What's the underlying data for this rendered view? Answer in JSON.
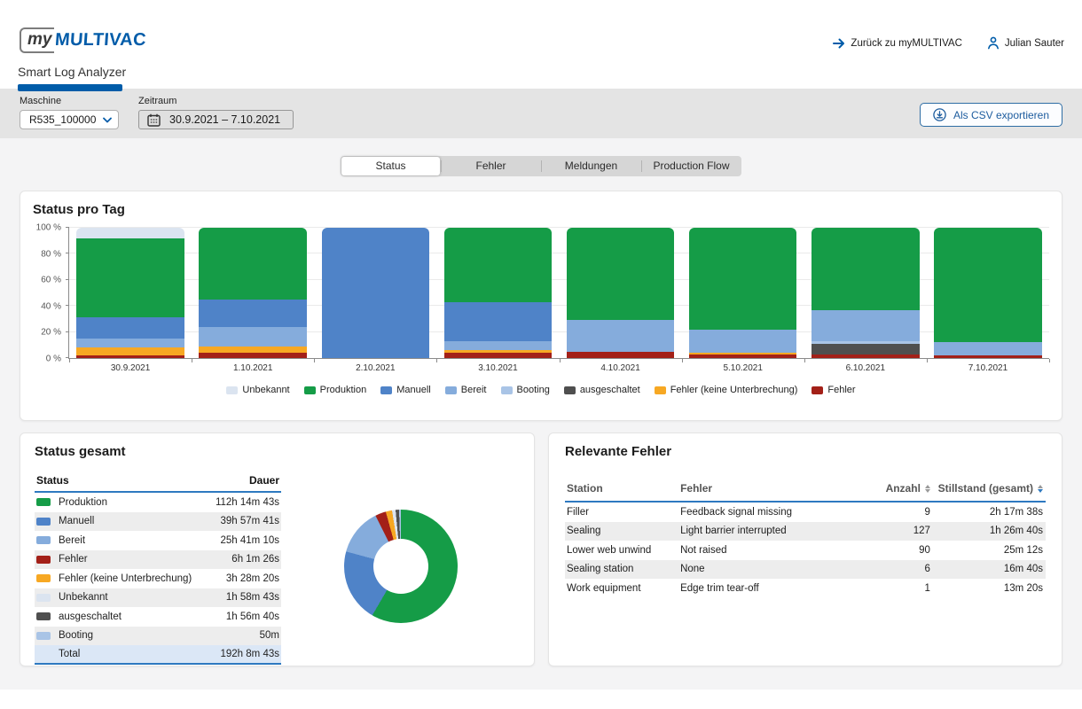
{
  "header": {
    "logo_my": "my",
    "logo_brand": "MULTIVAC",
    "app_tab": "Smart Log Analyzer",
    "back_link": "Zurück zu myMULTIVAC",
    "user_name": "Julian Sauter"
  },
  "filters": {
    "machine_label": "Maschine",
    "machine_value": "R535_100000",
    "period_label": "Zeitraum",
    "period_value": "30.9.2021 – 7.10.2021",
    "export_label": "Als CSV exportieren"
  },
  "tabs": {
    "active": "Status",
    "items": [
      {
        "key": "status",
        "label": "Status"
      },
      {
        "key": "fehler",
        "label": "Fehler"
      },
      {
        "key": "meldungen",
        "label": "Meldungen"
      },
      {
        "key": "production-flow",
        "label": "Production Flow"
      }
    ]
  },
  "colors": {
    "brand": "#005CA9",
    "accent": "#2E79C0",
    "unbekannt": "#dbe4f0",
    "produktion": "#159c47",
    "manuell": "#4f83c8",
    "bereit": "#85acdc",
    "booting": "#a9c4e6",
    "ausgeschaltet": "#4f4f4f",
    "fehler_ku": "#f7a823",
    "fehler": "#a32018"
  },
  "chart_data": [
    {
      "type": "bar",
      "stacked": true,
      "title": "Status pro Tag",
      "categories": [
        "30.9.2021",
        "1.10.2021",
        "2.10.2021",
        "3.10.2021",
        "4.10.2021",
        "5.10.2021",
        "6.10.2021",
        "7.10.2021"
      ],
      "ylim": [
        0,
        100
      ],
      "yticks": [
        0,
        20,
        40,
        60,
        80,
        100
      ],
      "ytick_labels": [
        "0 %",
        "20 %",
        "40 %",
        "60 %",
        "80 %",
        "100 %"
      ],
      "unit": "percent of day",
      "grid": true,
      "legend_position": "bottom",
      "series": [
        {
          "name": "Fehler",
          "color": "#a32018",
          "values": [
            2,
            4,
            0,
            4,
            5,
            3,
            3,
            2
          ]
        },
        {
          "name": "Fehler (keine Unterbrechung)",
          "color": "#f7a823",
          "values": [
            6,
            5,
            0,
            2,
            0,
            1,
            0,
            0
          ]
        },
        {
          "name": "ausgeschaltet",
          "color": "#4f4f4f",
          "values": [
            0,
            0,
            0,
            0,
            0,
            0,
            8,
            0
          ]
        },
        {
          "name": "Booting",
          "color": "#a9c4e6",
          "values": [
            0,
            0,
            0,
            0,
            0,
            0,
            2,
            0
          ]
        },
        {
          "name": "Bereit",
          "color": "#85acdc",
          "values": [
            7,
            15,
            0,
            7,
            24,
            18,
            24,
            10
          ]
        },
        {
          "name": "Manuell",
          "color": "#4f83c8",
          "values": [
            16,
            21,
            100,
            30,
            0,
            0,
            0,
            0
          ]
        },
        {
          "name": "Produktion",
          "color": "#159c47",
          "values": [
            61,
            55,
            0,
            57,
            71,
            78,
            63,
            88
          ]
        },
        {
          "name": "Unbekannt",
          "color": "#dbe4f0",
          "values": [
            8,
            0,
            0,
            0,
            0,
            0,
            0,
            0
          ]
        }
      ],
      "legend": [
        {
          "label": "Unbekannt",
          "color": "#dbe4f0"
        },
        {
          "label": "Produktion",
          "color": "#159c47"
        },
        {
          "label": "Manuell",
          "color": "#4f83c8"
        },
        {
          "label": "Bereit",
          "color": "#85acdc"
        },
        {
          "label": "Booting",
          "color": "#a9c4e6"
        },
        {
          "label": "ausgeschaltet",
          "color": "#4f4f4f"
        },
        {
          "label": "Fehler (keine Unterbrechung)",
          "color": "#f7a823"
        },
        {
          "label": "Fehler",
          "color": "#a32018"
        }
      ]
    },
    {
      "type": "pie",
      "donut": true,
      "title": "Status gesamt",
      "segments": [
        {
          "label": "Produktion",
          "pct": 58.4,
          "color": "#159c47"
        },
        {
          "label": "Manuell",
          "pct": 20.8,
          "color": "#4f83c8"
        },
        {
          "label": "Bereit",
          "pct": 13.4,
          "color": "#85acdc"
        },
        {
          "label": "Fehler",
          "pct": 3.1,
          "color": "#a32018"
        },
        {
          "label": "Fehler (keine Unterbrechung)",
          "pct": 1.8,
          "color": "#f7a823"
        },
        {
          "label": "Unbekannt",
          "pct": 1.0,
          "color": "#dbe4f0"
        },
        {
          "label": "ausgeschaltet",
          "pct": 1.0,
          "color": "#4f4f4f"
        },
        {
          "label": "Booting",
          "pct": 0.5,
          "color": "#a9c4e6"
        }
      ]
    }
  ],
  "status_table": {
    "title": "Status gesamt",
    "headers": {
      "status": "Status",
      "dauer": "Dauer"
    },
    "rows": [
      {
        "status": "Produktion",
        "color": "#159c47",
        "dauer": "112h 14m 43s"
      },
      {
        "status": "Manuell",
        "color": "#4f83c8",
        "dauer": "39h 57m 41s"
      },
      {
        "status": "Bereit",
        "color": "#85acdc",
        "dauer": "25h 41m 10s"
      },
      {
        "status": "Fehler",
        "color": "#a32018",
        "dauer": "6h 1m 26s"
      },
      {
        "status": "Fehler (keine Unterbrechung)",
        "color": "#f7a823",
        "dauer": "3h 28m 20s"
      },
      {
        "status": "Unbekannt",
        "color": "#dbe4f0",
        "dauer": "1h 58m 43s"
      },
      {
        "status": "ausgeschaltet",
        "color": "#4f4f4f",
        "dauer": "1h 56m 40s"
      },
      {
        "status": "Booting",
        "color": "#a9c4e6",
        "dauer": "50m"
      }
    ],
    "total": {
      "label": "Total",
      "dauer": "192h 8m 43s"
    }
  },
  "error_table": {
    "title": "Relevante Fehler",
    "headers": [
      {
        "label": "Station",
        "sort": "none"
      },
      {
        "label": "Fehler",
        "sort": "none"
      },
      {
        "label": "Anzahl",
        "sort": "both"
      },
      {
        "label": "Stillstand (gesamt)",
        "sort": "desc"
      }
    ],
    "rows": [
      {
        "station": "Filler",
        "fehler": "Feedback signal missing",
        "anzahl": "9",
        "stillstand": "2h 17m 38s"
      },
      {
        "station": "Sealing",
        "fehler": "Light barrier interrupted",
        "anzahl": "127",
        "stillstand": "1h 26m 40s"
      },
      {
        "station": "Lower web unwind",
        "fehler": "Not raised",
        "anzahl": "90",
        "stillstand": "25m 12s"
      },
      {
        "station": "Sealing station",
        "fehler": "None",
        "anzahl": "6",
        "stillstand": "16m 40s"
      },
      {
        "station": "Work equipment",
        "fehler": "Edge trim tear-off",
        "anzahl": "1",
        "stillstand": "13m 20s"
      }
    ]
  }
}
